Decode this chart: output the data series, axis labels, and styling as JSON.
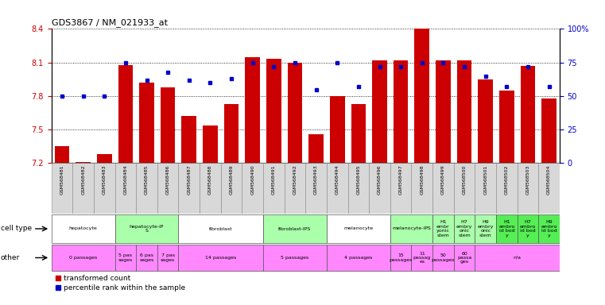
{
  "title": "GDS3867 / NM_021933_at",
  "samples": [
    "GSM568481",
    "GSM568482",
    "GSM568483",
    "GSM568484",
    "GSM568485",
    "GSM568486",
    "GSM568487",
    "GSM568488",
    "GSM568489",
    "GSM568490",
    "GSM568491",
    "GSM568492",
    "GSM568493",
    "GSM568494",
    "GSM568495",
    "GSM568496",
    "GSM568497",
    "GSM568498",
    "GSM568499",
    "GSM568500",
    "GSM568501",
    "GSM568502",
    "GSM568503",
    "GSM568504"
  ],
  "bar_values": [
    7.35,
    7.21,
    7.28,
    8.08,
    7.92,
    7.88,
    7.62,
    7.54,
    7.73,
    8.15,
    8.13,
    8.1,
    7.46,
    7.8,
    7.73,
    8.12,
    8.12,
    8.41,
    8.12,
    8.12,
    7.95,
    7.85,
    8.07,
    7.78
  ],
  "dot_values": [
    50,
    50,
    50,
    75,
    62,
    68,
    62,
    60,
    63,
    75,
    72,
    75,
    55,
    75,
    57,
    72,
    72,
    75,
    75,
    72,
    65,
    57,
    72,
    57
  ],
  "ymin": 7.2,
  "ymax": 8.4,
  "y2min": 0,
  "y2max": 100,
  "yticks": [
    7.2,
    7.5,
    7.8,
    8.1,
    8.4
  ],
  "y2ticks": [
    0,
    25,
    50,
    75,
    100
  ],
  "y2tick_labels": [
    "0",
    "25",
    "50",
    "75",
    "100%"
  ],
  "bar_color": "#CC0000",
  "dot_color": "#0000CC",
  "grid_color": "#000000",
  "sample_bg": "#D8D8D8",
  "cell_types": [
    {
      "label": "hepatocyte",
      "start": 0,
      "end": 2,
      "color": "#FFFFFF"
    },
    {
      "label": "hepatocyte-iP\nS",
      "start": 3,
      "end": 5,
      "color": "#AAFFAA"
    },
    {
      "label": "fibroblast",
      "start": 6,
      "end": 9,
      "color": "#FFFFFF"
    },
    {
      "label": "fibroblast-IPS",
      "start": 10,
      "end": 12,
      "color": "#AAFFAA"
    },
    {
      "label": "melanocyte",
      "start": 13,
      "end": 15,
      "color": "#FFFFFF"
    },
    {
      "label": "melanocyte-IPS",
      "start": 16,
      "end": 17,
      "color": "#AAFFAA"
    },
    {
      "label": "H1\nembr\nyonic\nstem",
      "start": 18,
      "end": 18,
      "color": "#AAFFAA"
    },
    {
      "label": "H7\nembry\nonic\nstem",
      "start": 19,
      "end": 19,
      "color": "#AAFFAA"
    },
    {
      "label": "H9\nembry\nonic\nstem",
      "start": 20,
      "end": 20,
      "color": "#AAFFAA"
    },
    {
      "label": "H1\nembro\nid bod\ny",
      "start": 21,
      "end": 21,
      "color": "#55EE55"
    },
    {
      "label": "H7\nembro\nid bod\ny",
      "start": 22,
      "end": 22,
      "color": "#55EE55"
    },
    {
      "label": "H9\nembro\nid bod\ny",
      "start": 23,
      "end": 23,
      "color": "#55EE55"
    }
  ],
  "other_row": [
    {
      "label": "0 passages",
      "start": 0,
      "end": 2,
      "color": "#FF88FF"
    },
    {
      "label": "5 pas\nsages",
      "start": 3,
      "end": 3,
      "color": "#FF88FF"
    },
    {
      "label": "6 pas\nsages",
      "start": 4,
      "end": 4,
      "color": "#FF88FF"
    },
    {
      "label": "7 pas\nsages",
      "start": 5,
      "end": 5,
      "color": "#FF88FF"
    },
    {
      "label": "14 passages",
      "start": 6,
      "end": 9,
      "color": "#FF88FF"
    },
    {
      "label": "5 passages",
      "start": 10,
      "end": 12,
      "color": "#FF88FF"
    },
    {
      "label": "4 passages",
      "start": 13,
      "end": 15,
      "color": "#FF88FF"
    },
    {
      "label": "15\npassages",
      "start": 16,
      "end": 16,
      "color": "#FF88FF"
    },
    {
      "label": "11\npassag\nes",
      "start": 17,
      "end": 17,
      "color": "#FF88FF"
    },
    {
      "label": "50\npassages",
      "start": 18,
      "end": 18,
      "color": "#FF88FF"
    },
    {
      "label": "60\npassa\nges",
      "start": 19,
      "end": 19,
      "color": "#FF88FF"
    },
    {
      "label": "n/a",
      "start": 20,
      "end": 23,
      "color": "#FF88FF"
    }
  ]
}
